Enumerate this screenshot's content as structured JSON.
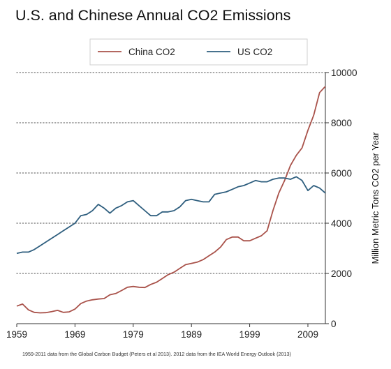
{
  "chart_data": {
    "type": "line",
    "title": "U.S. and Chinese Annual CO2 Emissions",
    "note": "1959-2011 data from the Global Carbon Budget (Peters et al 2013). 2012 data from the IEA World Energy Outlook (2013)",
    "ylabel": "Million Metric Tons CO2 per Year",
    "xlabel": "",
    "x_ticks": [
      "1959",
      "1969",
      "1979",
      "1989",
      "1999",
      "2009"
    ],
    "y_ticks": [
      "0",
      "2000",
      "4000",
      "6000",
      "8000",
      "10000"
    ],
    "xlim": [
      1959,
      2012
    ],
    "ylim": [
      0,
      10000
    ],
    "grid": true,
    "legend_position": "top",
    "x": [
      1959,
      1960,
      1961,
      1962,
      1963,
      1964,
      1965,
      1966,
      1967,
      1968,
      1969,
      1970,
      1971,
      1972,
      1973,
      1974,
      1975,
      1976,
      1977,
      1978,
      1979,
      1980,
      1981,
      1982,
      1983,
      1984,
      1985,
      1986,
      1987,
      1988,
      1989,
      1990,
      1991,
      1992,
      1993,
      1994,
      1995,
      1996,
      1997,
      1998,
      1999,
      2000,
      2001,
      2002,
      2003,
      2004,
      2005,
      2006,
      2007,
      2008,
      2009,
      2010,
      2011,
      2012
    ],
    "series": [
      {
        "name": "China CO2",
        "color": "#a9524a",
        "values": [
          700,
          780,
          550,
          450,
          430,
          440,
          480,
          530,
          450,
          470,
          580,
          800,
          900,
          950,
          980,
          1000,
          1150,
          1200,
          1320,
          1450,
          1480,
          1450,
          1440,
          1560,
          1650,
          1800,
          1950,
          2050,
          2200,
          2350,
          2400,
          2450,
          2550,
          2700,
          2850,
          3050,
          3350,
          3450,
          3450,
          3300,
          3300,
          3400,
          3500,
          3700,
          4500,
          5200,
          5700,
          6300,
          6700,
          7000,
          7700,
          8300,
          9200,
          9450
        ]
      },
      {
        "name": "US CO2",
        "color": "#2e5e7e",
        "values": [
          2800,
          2850,
          2850,
          2950,
          3100,
          3250,
          3400,
          3550,
          3700,
          3850,
          4000,
          4300,
          4350,
          4500,
          4750,
          4600,
          4400,
          4600,
          4700,
          4850,
          4900,
          4700,
          4500,
          4300,
          4300,
          4450,
          4450,
          4500,
          4650,
          4900,
          4950,
          4900,
          4850,
          4850,
          5150,
          5200,
          5250,
          5350,
          5450,
          5500,
          5600,
          5700,
          5650,
          5650,
          5750,
          5800,
          5800,
          5750,
          5850,
          5700,
          5300,
          5500,
          5400,
          5200
        ]
      }
    ]
  }
}
